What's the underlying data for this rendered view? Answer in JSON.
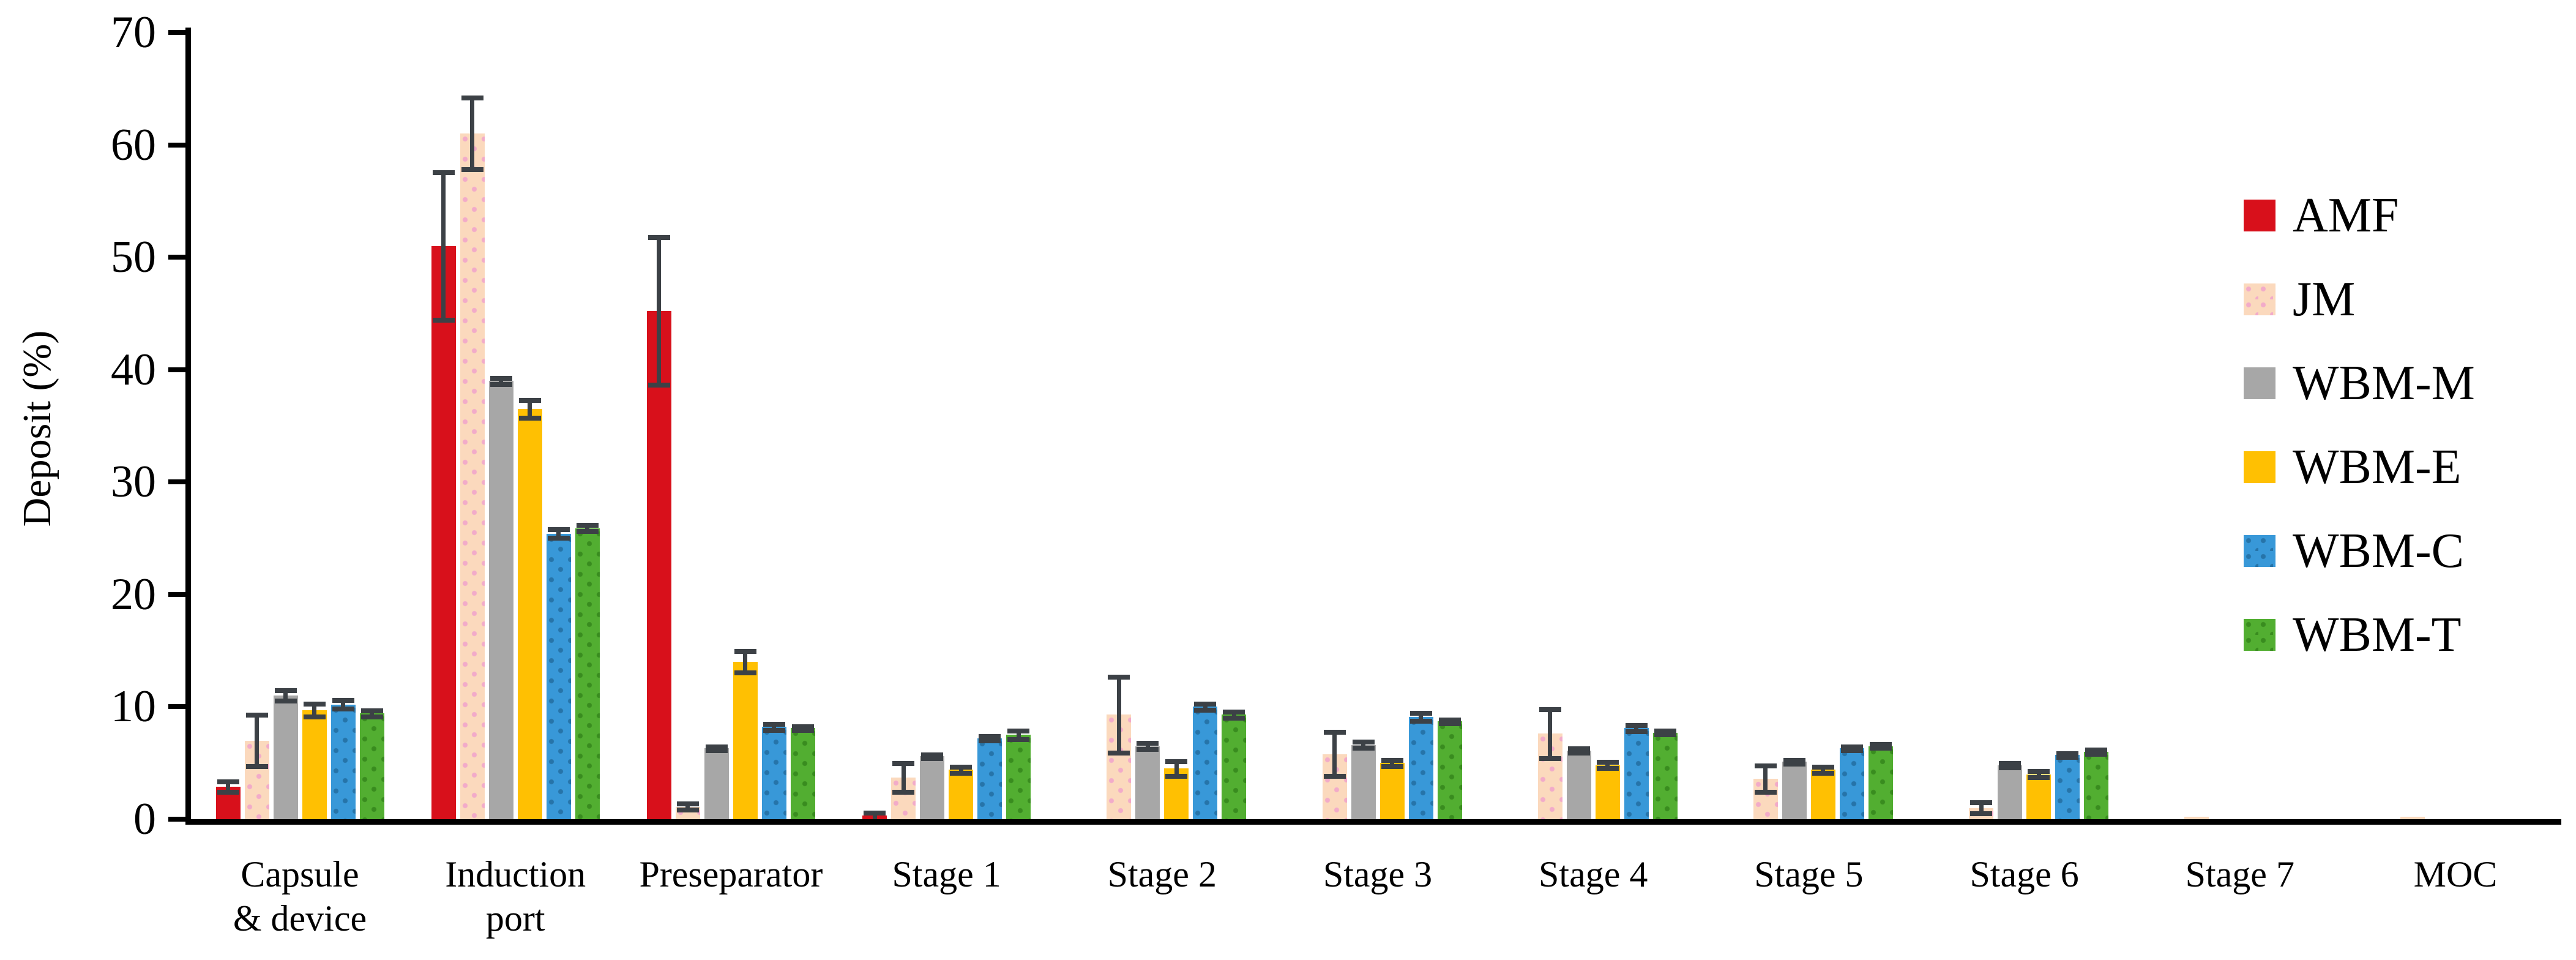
{
  "figure": {
    "background": "#FFFFFF",
    "ylabel": "Deposit (%)"
  },
  "chart_data": {
    "type": "bar",
    "title": "",
    "xlabel": "",
    "ylabel": "Deposit (%)",
    "ylim": [
      0,
      70
    ],
    "y_ticks": [
      0,
      10,
      20,
      30,
      40,
      50,
      60,
      70
    ],
    "grid": false,
    "legend_position": "right",
    "error_bars": true,
    "error_bar_color": "#3C4146",
    "axis_color": "#000000",
    "categories": [
      "Capsule & device",
      "Induction port",
      "Preseparator",
      "Stage 1",
      "Stage 2",
      "Stage 3",
      "Stage 4",
      "Stage 5",
      "Stage 6",
      "Stage 7",
      "MOC"
    ],
    "categories_display": [
      [
        "Capsule",
        "& device"
      ],
      [
        "Induction",
        "port"
      ],
      [
        "Preseparator"
      ],
      [
        "Stage 1"
      ],
      [
        "Stage 2"
      ],
      [
        "Stage 3"
      ],
      [
        "Stage 4"
      ],
      [
        "Stage 5"
      ],
      [
        "Stage 6"
      ],
      [
        "Stage 7"
      ],
      [
        "MOC"
      ]
    ],
    "series": [
      {
        "name": "AMF",
        "color": "#D8101B",
        "pattern": "solid",
        "values": [
          2.9,
          51.0,
          45.2,
          0.3,
          0,
          0,
          0,
          0,
          0,
          0,
          0
        ],
        "errors": [
          0.5,
          6.6,
          6.6,
          0.3,
          0,
          0,
          0,
          0,
          0,
          0,
          0
        ]
      },
      {
        "name": "JM",
        "color": "#FBD9BD",
        "pattern": "dots",
        "dot_color": "#F2ABC9",
        "values": [
          7.0,
          61.0,
          1.1,
          3.7,
          9.3,
          5.8,
          7.6,
          3.6,
          1.0,
          0.2,
          0.2
        ],
        "errors": [
          2.3,
          3.2,
          0.3,
          1.3,
          3.4,
          2.0,
          2.2,
          1.2,
          0.5,
          0,
          0
        ]
      },
      {
        "name": "WBM-M",
        "color": "#A7A7A7",
        "pattern": "solid",
        "values": [
          11.0,
          39.0,
          6.3,
          5.6,
          6.5,
          6.6,
          6.1,
          5.1,
          4.8,
          0,
          0
        ],
        "errors": [
          0.5,
          0.3,
          0.2,
          0.2,
          0.3,
          0.3,
          0.2,
          0.2,
          0.2,
          0,
          0
        ]
      },
      {
        "name": "WBM-E",
        "color": "#FFC002",
        "pattern": "solid",
        "values": [
          9.7,
          36.5,
          14.0,
          4.4,
          4.5,
          5.0,
          4.8,
          4.4,
          4.0,
          0,
          0
        ],
        "errors": [
          0.6,
          0.8,
          1.0,
          0.3,
          0.7,
          0.3,
          0.3,
          0.3,
          0.3,
          0,
          0
        ]
      },
      {
        "name": "WBM-C",
        "color": "#3898D8",
        "pattern": "dots",
        "dot_color": "#2674A9",
        "values": [
          10.2,
          25.4,
          8.2,
          7.2,
          10.0,
          9.1,
          8.1,
          6.3,
          5.7,
          0,
          0
        ],
        "errors": [
          0.4,
          0.4,
          0.3,
          0.2,
          0.3,
          0.4,
          0.3,
          0.2,
          0.2,
          0,
          0
        ]
      },
      {
        "name": "WBM-T",
        "color": "#52AE31",
        "pattern": "dots",
        "dot_color": "#398C1F",
        "values": [
          9.4,
          25.9,
          8.1,
          7.5,
          9.3,
          8.7,
          7.7,
          6.5,
          6.0,
          0,
          0
        ],
        "errors": [
          0.3,
          0.3,
          0.2,
          0.4,
          0.3,
          0.2,
          0.2,
          0.2,
          0.2,
          0,
          0
        ]
      }
    ]
  }
}
